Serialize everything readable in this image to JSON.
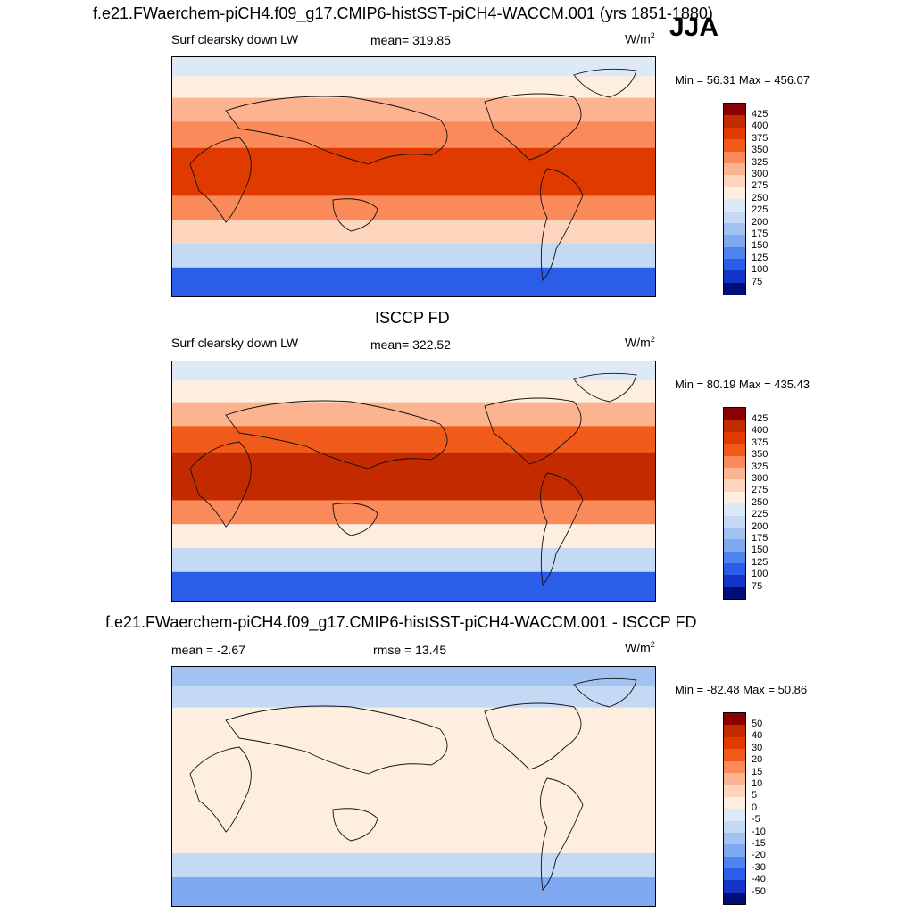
{
  "header": {
    "title": "f.e21.FWaerchem-piCH4.f09_g17.CMIP6-histSST-piCH4-WACCM.001 (yrs 1851-1880)",
    "season": "JJA"
  },
  "units_base": "W/m",
  "units_exp": "2",
  "chart_data": [
    {
      "type": "heatmap",
      "panel_title": "",
      "variable": "Surf clearsky down LW",
      "stat_label": "mean= 319.85",
      "min_max": "Min =  56.31 Max = 456.07",
      "units": "W/m2",
      "colorbar": {
        "levels": [
          "425",
          "400",
          "375",
          "350",
          "325",
          "300",
          "275",
          "250",
          "225",
          "200",
          "175",
          "150",
          "125",
          "100",
          "75"
        ],
        "colors": [
          "#8b0000",
          "#c42a00",
          "#e03a00",
          "#f05a1a",
          "#fa8a5a",
          "#fcb38f",
          "#fdd5bd",
          "#fdeee0",
          "#dde9f7",
          "#c3d9f4",
          "#a2c2f0",
          "#7ea8ef",
          "#4e83f0",
          "#2a5de8",
          "#1235c8",
          "#000e7a"
        ]
      },
      "field": {
        "polar_north": 230,
        "arctic": 265,
        "midlat_north": 300,
        "subtropic": 345,
        "equator": 390,
        "south_subtropic": 330,
        "south_midlat": 275,
        "southern_ocean": 215,
        "antarctic": 110
      }
    },
    {
      "type": "heatmap",
      "panel_title": "ISCCP FD",
      "variable": "Surf clearsky down LW",
      "stat_label": "mean= 322.52",
      "min_max": "Min =  80.19 Max = 435.43",
      "units": "W/m2",
      "colorbar": {
        "levels": [
          "425",
          "400",
          "375",
          "350",
          "325",
          "300",
          "275",
          "250",
          "225",
          "200",
          "175",
          "150",
          "125",
          "100",
          "75"
        ],
        "colors": [
          "#8b0000",
          "#c42a00",
          "#e03a00",
          "#f05a1a",
          "#fa8a5a",
          "#fcb38f",
          "#fdd5bd",
          "#fdeee0",
          "#dde9f7",
          "#c3d9f4",
          "#a2c2f0",
          "#7ea8ef",
          "#4e83f0",
          "#2a5de8",
          "#1235c8",
          "#000e7a"
        ]
      },
      "field": {
        "polar_north": 235,
        "arctic": 270,
        "midlat_north": 305,
        "subtropic": 350,
        "equator": 400,
        "south_subtropic": 335,
        "south_midlat": 270,
        "southern_ocean": 210,
        "antarctic": 120
      }
    },
    {
      "type": "heatmap",
      "panel_title": "f.e21.FWaerchem-piCH4.f09_g17.CMIP6-histSST-piCH4-WACCM.001 - ISCCP FD",
      "variable": "mean =  -2.67",
      "stat_label": "rmse =  13.45",
      "min_max": "Min = -82.48 Max =  50.86",
      "units": "W/m2",
      "colorbar": {
        "levels": [
          "50",
          "40",
          "30",
          "20",
          "15",
          "10",
          "5",
          "0",
          "-5",
          "-10",
          "-15",
          "-20",
          "-30",
          "-40",
          "-50"
        ],
        "colors": [
          "#8b0000",
          "#c42a00",
          "#e03a00",
          "#f05a1a",
          "#fa8a5a",
          "#fcb38f",
          "#fdd5bd",
          "#fdeee0",
          "#dde9f7",
          "#c3d9f4",
          "#a2c2f0",
          "#7ea8ef",
          "#4e83f0",
          "#2a5de8",
          "#1235c8",
          "#000e7a"
        ]
      },
      "field": {
        "polar_north": -12,
        "arctic": -6,
        "midlat_north": 2,
        "subtropic": 4,
        "equator": 3,
        "south_subtropic": 4,
        "south_midlat": 2,
        "southern_ocean": -7,
        "antarctic": -18
      }
    }
  ]
}
